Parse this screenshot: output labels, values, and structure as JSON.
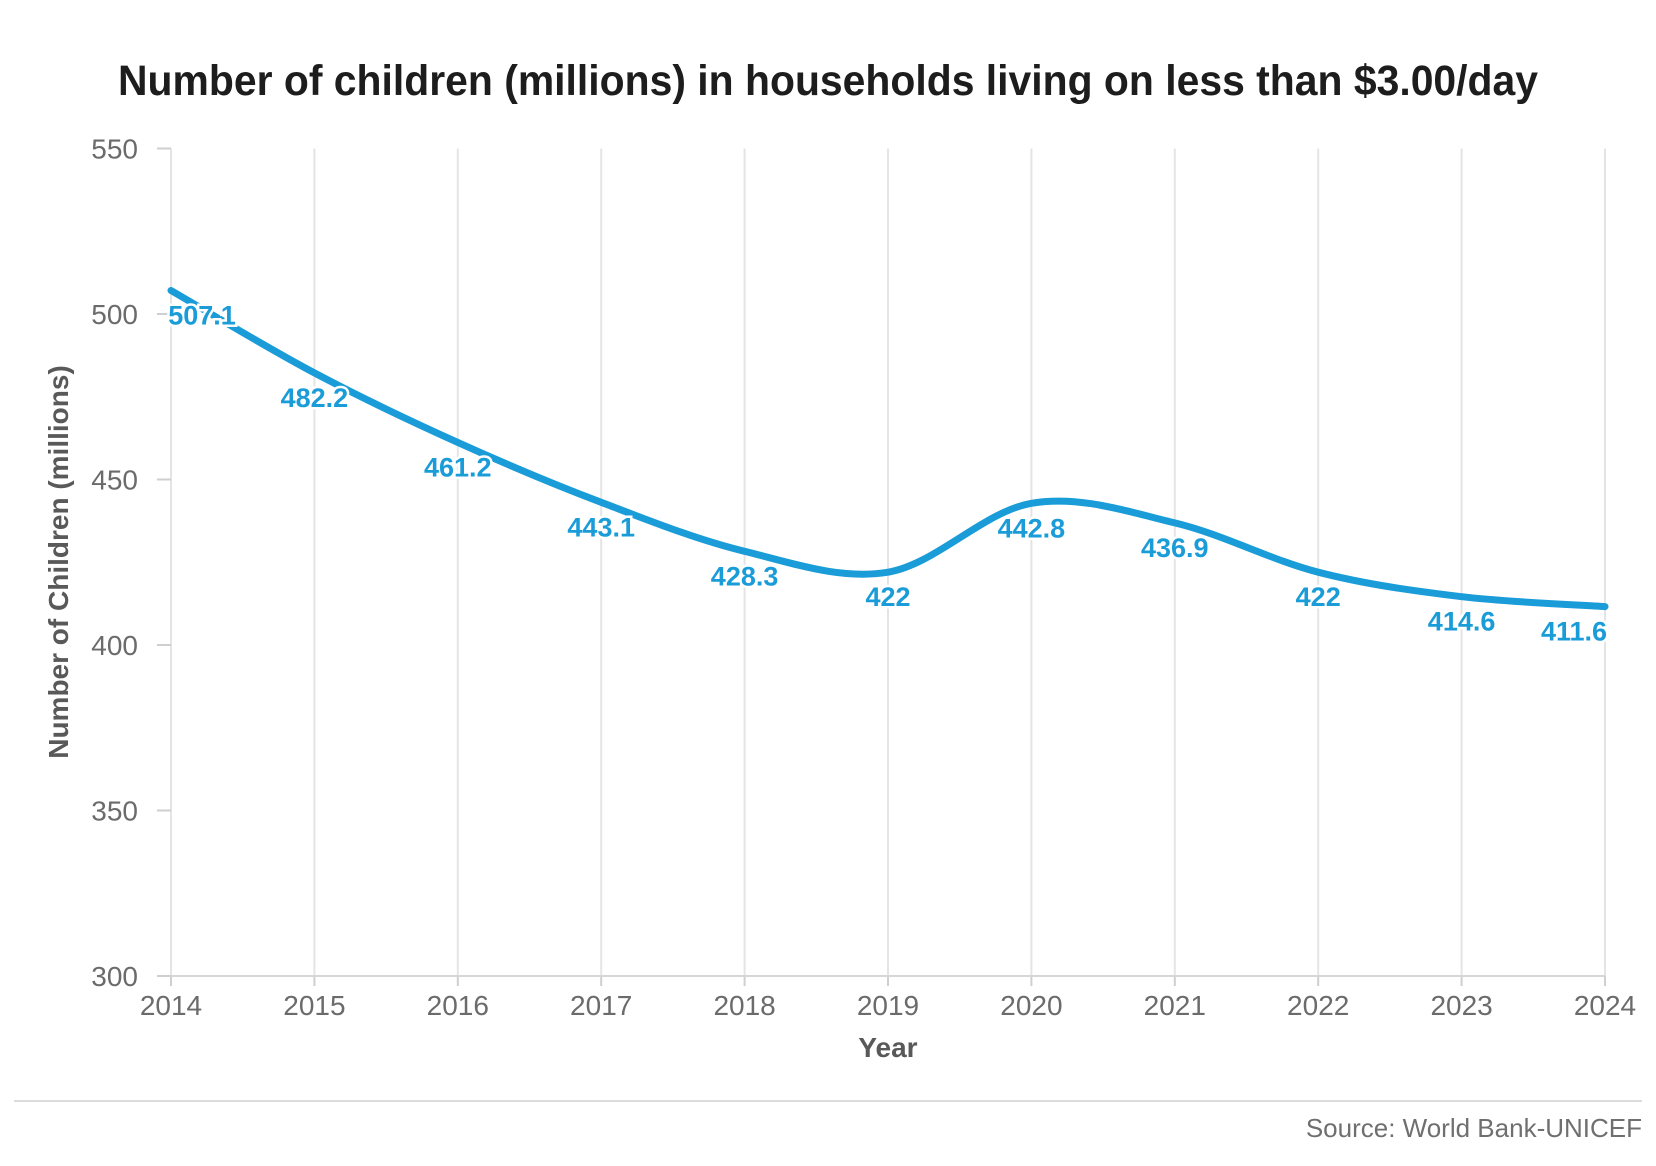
{
  "chart_data": {
    "type": "line",
    "title": "Number of children (millions) in households living on less than $3.00/day",
    "xlabel": "Year",
    "ylabel": "Number of Children (millions)",
    "x": [
      2014,
      2015,
      2016,
      2017,
      2018,
      2019,
      2020,
      2021,
      2022,
      2023,
      2024
    ],
    "values": [
      507.1,
      482.2,
      461.2,
      443.1,
      428.3,
      422,
      442.8,
      436.9,
      422,
      414.6,
      411.6
    ],
    "point_labels": [
      "507.1",
      "482.2",
      "461.2",
      "443.1",
      "428.3",
      "422",
      "442.8",
      "436.9",
      "422",
      "414.6",
      "411.6"
    ],
    "yticks": [
      300,
      350,
      400,
      450,
      500,
      550
    ],
    "ylim": [
      300,
      550
    ],
    "grid": "vertical-only",
    "smooth": true,
    "legend": "none",
    "line_color": "#1A9CD8",
    "grid_color": "#e4e4e4",
    "axis_color": "#d6d6d6",
    "tick_color": "#cfcfcf",
    "source": "Source: World Bank-UNICEF"
  }
}
